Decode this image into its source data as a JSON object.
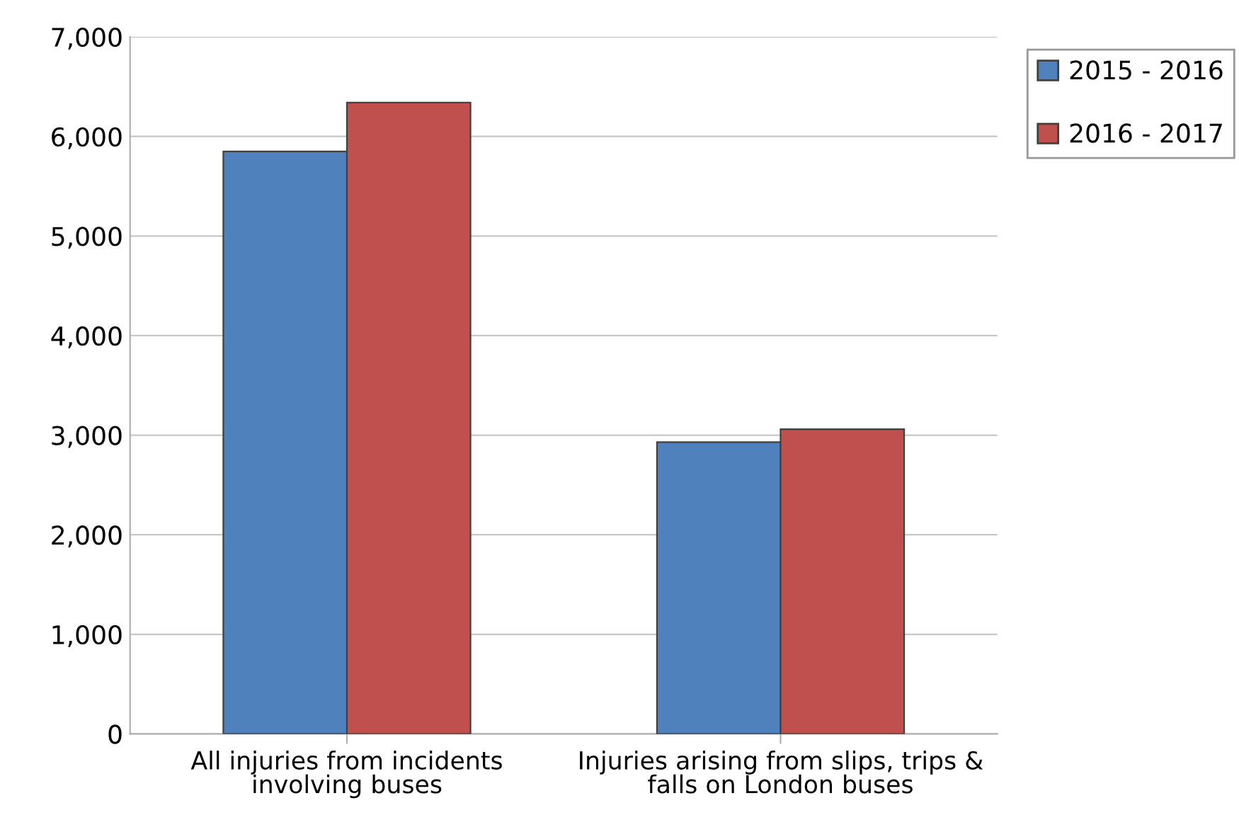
{
  "chart_data": {
    "type": "bar",
    "categories": [
      "All injuries from incidents involving buses",
      "Injuries arising from slips, trips & falls on London buses"
    ],
    "series": [
      {
        "name": "2015 - 2016",
        "color": "#4f81bd",
        "values": [
          5850,
          2930
        ]
      },
      {
        "name": "2016 - 2017",
        "color": "#c0504d",
        "values": [
          6340,
          3060
        ]
      }
    ],
    "ylim": [
      0,
      7000
    ],
    "yticks": [
      {
        "value": 0,
        "label": "0"
      },
      {
        "value": 1000,
        "label": "1,000"
      },
      {
        "value": 2000,
        "label": "2,000"
      },
      {
        "value": 3000,
        "label": "3,000"
      },
      {
        "value": 4000,
        "label": "4,000"
      },
      {
        "value": 5000,
        "label": "5,000"
      },
      {
        "value": 6000,
        "label": "6,000"
      },
      {
        "value": 7000,
        "label": "7,000"
      }
    ],
    "grid": "y",
    "legend": "top right"
  }
}
